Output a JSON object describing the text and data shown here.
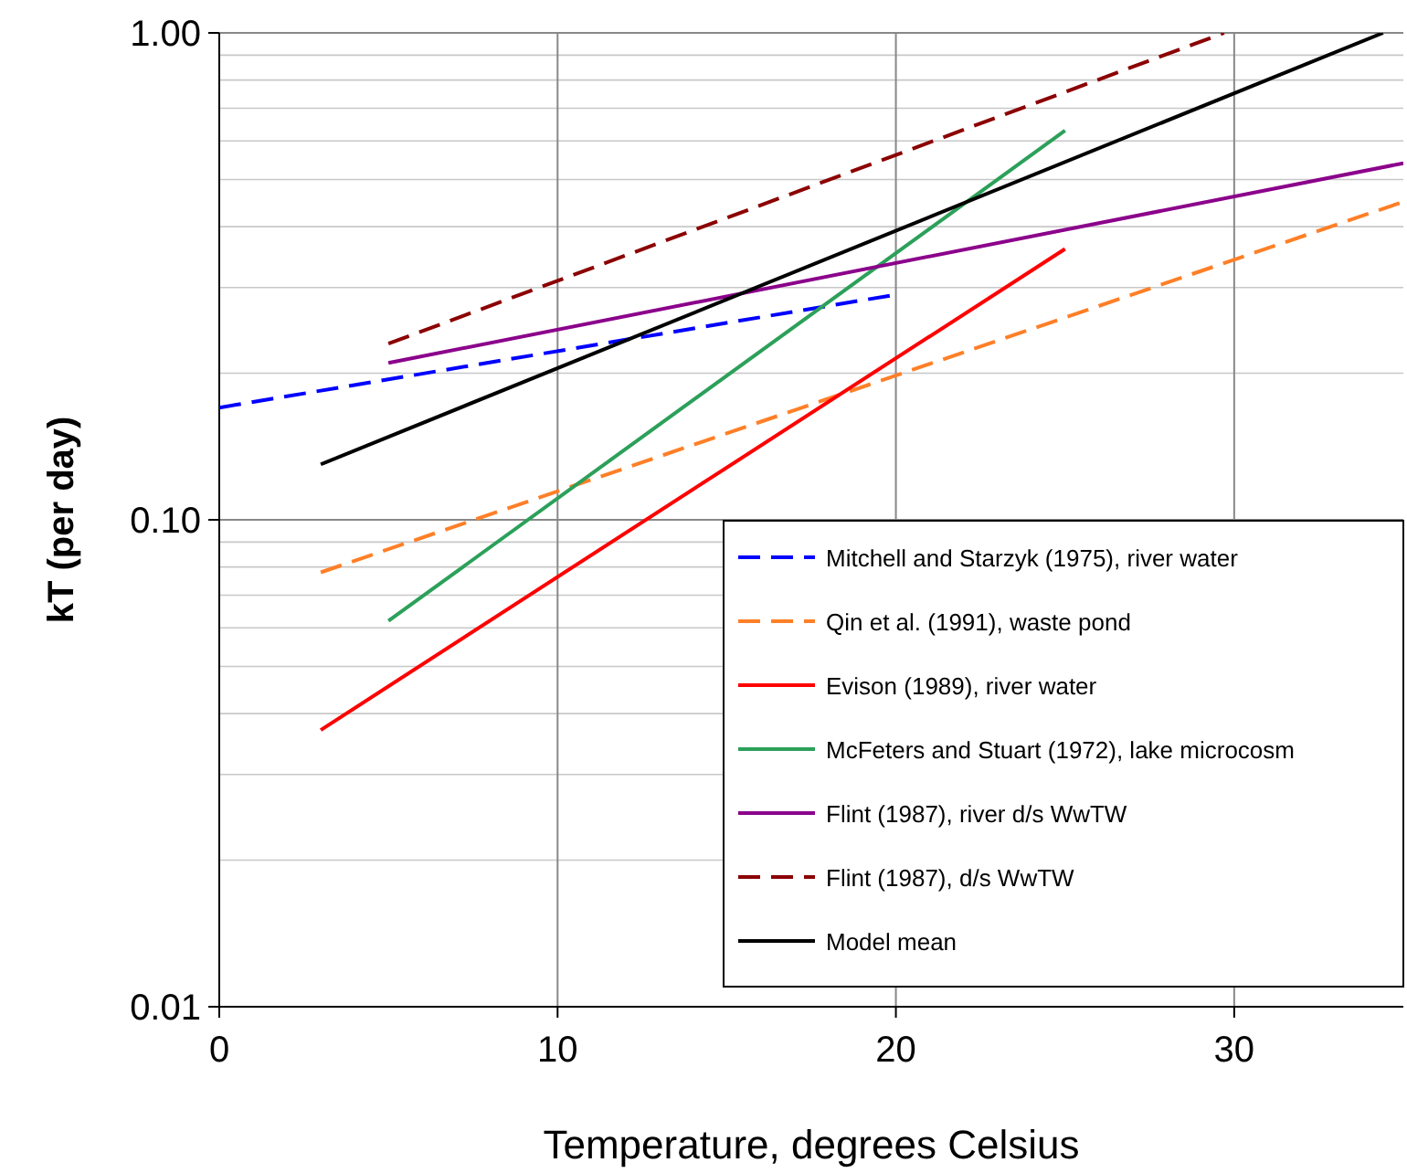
{
  "chart_data": {
    "type": "line",
    "xlabel": "Temperature, degrees Celsius",
    "ylabel": "kT (per day)",
    "log": "y",
    "xlim": [
      0,
      35
    ],
    "ylim": [
      0.01,
      1
    ],
    "xticks": [
      0,
      10,
      20,
      30
    ],
    "yticks": [
      0.01,
      {
        "value": 0.1,
        "label": "0.10"
      },
      {
        "value": 1,
        "label": "1.00"
      }
    ],
    "grid": true,
    "legend": "bottom right",
    "series": [
      {
        "name": "Mitchell and Starzyk (1975), river water",
        "color": "#0000ff",
        "line_style": "dashed",
        "x": [
          0,
          20
        ],
        "values": [
          0.17,
          0.29
        ]
      },
      {
        "name": "Qin et al. (1991), waste pond",
        "color": "#ff7f27",
        "line_style": "dashed",
        "x": [
          3,
          35
        ],
        "values": [
          0.078,
          0.45
        ]
      },
      {
        "name": "Evison (1989), river water",
        "color": "#ff0000",
        "line_style": "solid",
        "x": [
          3,
          25
        ],
        "values": [
          0.037,
          0.36
        ]
      },
      {
        "name": "McFeters and Stuart (1972), lake microcosm",
        "color": "#2ca05a",
        "line_style": "solid",
        "x": [
          5,
          25
        ],
        "values": [
          0.062,
          0.63
        ]
      },
      {
        "name": "Flint (1987), river d/s WwTW",
        "color": "#8b008b",
        "line_style": "solid",
        "x": [
          5,
          35
        ],
        "values": [
          0.21,
          0.54
        ]
      },
      {
        "name": "Flint (1987), d/s WwTW",
        "color": "#8b0000",
        "line_style": "dashed",
        "x": [
          5,
          29.7
        ],
        "values": [
          0.23,
          1.0
        ]
      },
      {
        "name": "Model mean",
        "color": "#000000",
        "line_style": "solid",
        "x": [
          3,
          34.4
        ],
        "values": [
          0.13,
          1.0
        ]
      }
    ]
  }
}
